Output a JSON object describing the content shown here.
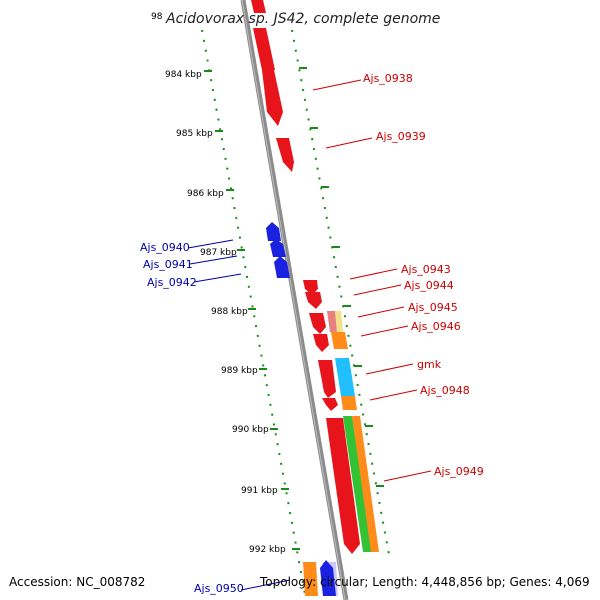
{
  "title": "Acidovorax sp. JS42, complete genome",
  "title_prefix_fragment": "98",
  "footer": {
    "accession": "Accession: NC_008782",
    "topology": "Topology: circular; Length: 4,448,856 bp; Genes: 4,069"
  },
  "colors": {
    "forward_gene": "#e8141c",
    "reverse_gene": "#1a22e0",
    "forward_label": "#cc0000",
    "reverse_label": "#0000aa",
    "tick": "#1a8a1a",
    "backbone": "#8c8c8c",
    "cds_orange": "#ff8c1a",
    "cds_cyan": "#22bfff",
    "cds_green": "#33c233",
    "cds_pink": "#e88080",
    "cds_yellow": "#f2e08a"
  },
  "ticks": [
    {
      "label": "984 kbp"
    },
    {
      "label": "985 kbp"
    },
    {
      "label": "986 kbp"
    },
    {
      "label": "987 kbp"
    },
    {
      "label": "988 kbp"
    },
    {
      "label": "989 kbp"
    },
    {
      "label": "990 kbp"
    },
    {
      "label": "991 kbp"
    },
    {
      "label": "992 kbp"
    }
  ],
  "forward_genes": [
    "Ajs_0938",
    "Ajs_0939",
    "Ajs_0943",
    "Ajs_0944",
    "Ajs_0945",
    "Ajs_0946",
    "gmk",
    "Ajs_0948",
    "Ajs_0949"
  ],
  "reverse_genes": [
    "Ajs_0940",
    "Ajs_0941",
    "Ajs_0942",
    "Ajs_0950"
  ]
}
